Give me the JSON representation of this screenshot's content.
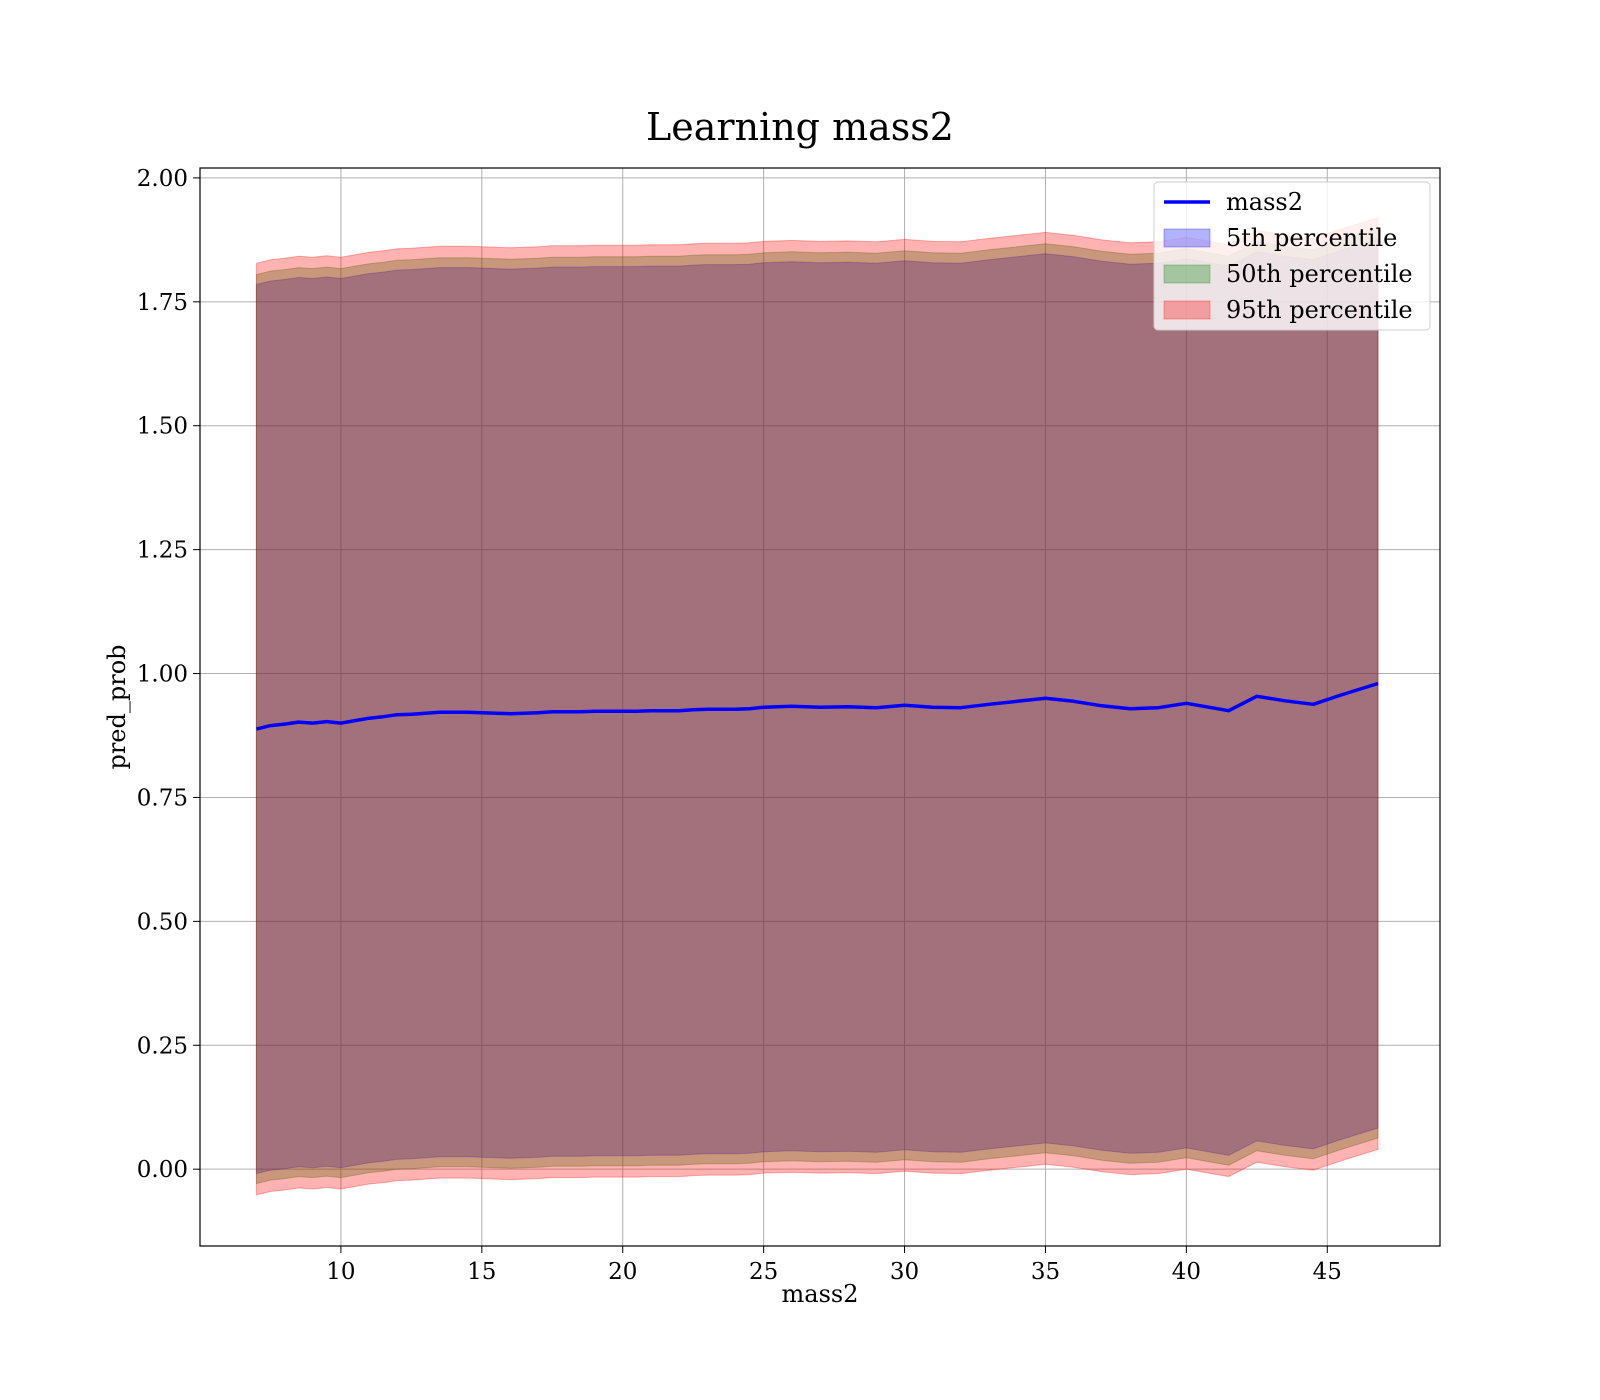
{
  "chart_data": {
    "type": "line",
    "title": "Learning mass2",
    "xlabel": "mass2",
    "ylabel": "pred_prob",
    "xlim": [
      5,
      49
    ],
    "ylim": [
      -0.155,
      2.02
    ],
    "xticks": [
      10,
      15,
      20,
      25,
      30,
      35,
      40,
      45
    ],
    "yticks": [
      0.0,
      0.25,
      0.5,
      0.75,
      1.0,
      1.25,
      1.5,
      1.75,
      2.0
    ],
    "ytick_labels": [
      "0.00",
      "0.25",
      "0.50",
      "0.75",
      "1.00",
      "1.25",
      "1.50",
      "1.75",
      "2.00"
    ],
    "grid": true,
    "legend_position": "top-right",
    "x": [
      7.0,
      7.5,
      8.0,
      8.5,
      9.0,
      9.5,
      10.0,
      10.5,
      11.0,
      11.5,
      12.0,
      12.5,
      13.0,
      13.5,
      14.0,
      14.5,
      15.0,
      15.5,
      16.0,
      16.5,
      17.0,
      17.5,
      18.0,
      18.5,
      19.0,
      19.5,
      20.0,
      20.5,
      21.0,
      21.5,
      22.0,
      22.5,
      23.0,
      23.5,
      24.0,
      24.5,
      25.0,
      26.0,
      27.0,
      28.0,
      29.0,
      30.0,
      31.0,
      32.0,
      33.0,
      34.0,
      35.0,
      36.0,
      37.0,
      38.0,
      39.0,
      40.0,
      41.5,
      42.5,
      43.5,
      44.5,
      45.5,
      46.8
    ],
    "series": [
      {
        "name": "mass2",
        "kind": "line",
        "color": "#0000ff",
        "values": [
          0.888,
          0.895,
          0.898,
          0.902,
          0.9,
          0.903,
          0.9,
          0.905,
          0.91,
          0.913,
          0.917,
          0.918,
          0.92,
          0.922,
          0.922,
          0.922,
          0.921,
          0.92,
          0.919,
          0.92,
          0.921,
          0.923,
          0.923,
          0.923,
          0.924,
          0.924,
          0.924,
          0.924,
          0.925,
          0.925,
          0.925,
          0.927,
          0.928,
          0.928,
          0.928,
          0.929,
          0.932,
          0.934,
          0.932,
          0.933,
          0.931,
          0.936,
          0.932,
          0.931,
          0.938,
          0.944,
          0.95,
          0.944,
          0.935,
          0.929,
          0.931,
          0.94,
          0.925,
          0.954,
          0.945,
          0.938,
          0.957,
          0.98
        ]
      },
      {
        "name": "5th percentile",
        "kind": "band",
        "color": "#0000ff",
        "band_half_width": 0.897
      },
      {
        "name": "50th percentile",
        "kind": "band",
        "color": "#008000",
        "band_half_width": 0.917
      },
      {
        "name": "95th percentile",
        "kind": "band",
        "color": "#ff0000",
        "band_half_width": 0.94
      }
    ]
  }
}
